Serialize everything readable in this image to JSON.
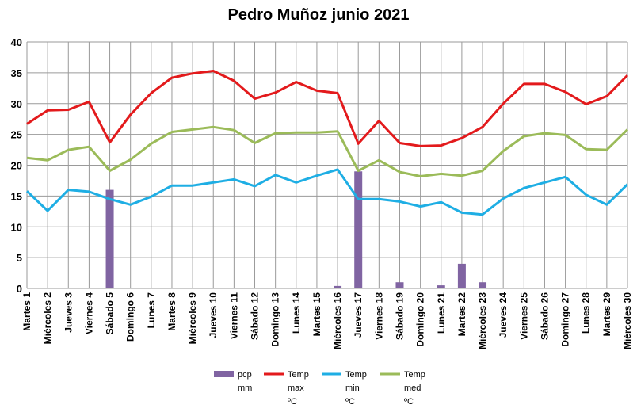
{
  "chart_data": {
    "type": "bar+line",
    "title": "Pedro Muñoz junio 2021",
    "xlabel": "",
    "ylabel": "",
    "ylim": [
      0,
      40
    ],
    "yticks": [
      0,
      5,
      10,
      15,
      20,
      25,
      30,
      35,
      40
    ],
    "grid": true,
    "legend_position": "bottom",
    "categories": [
      "Martes 1",
      "Miércoles 2",
      "Jueves 3",
      "Viernes 4",
      "Sábado 5",
      "Domingo 6",
      "Lunes 7",
      "Martes 8",
      "Miércoles 9",
      "Jueves 10",
      "Viernes 11",
      "Sábado 12",
      "Domingo 13",
      "Lunes 14",
      "Martes 15",
      "Miércoles 16",
      "Jueves 17",
      "Viernes 18",
      "Sábado 19",
      "Domingo 20",
      "Lunes 21",
      "Martes 22",
      "Miércoles 23",
      "Jueves 24",
      "Viernes 25",
      "Sábado 26",
      "Domingo 27",
      "Lunes 28",
      "Martes 29",
      "Miércoles 30"
    ],
    "series": [
      {
        "name": [
          "pcp",
          "mm"
        ],
        "kind": "bar",
        "color": "#8064A2",
        "values": [
          0,
          0,
          0,
          0,
          16,
          0,
          0,
          0,
          0,
          0,
          0,
          0,
          0,
          0,
          0,
          0.4,
          19,
          0,
          1,
          0,
          0.5,
          4,
          1,
          0,
          0,
          0,
          0,
          0,
          0,
          0
        ]
      },
      {
        "name": [
          "Temp",
          "max",
          "ºC"
        ],
        "kind": "line",
        "color": "#E31A1C",
        "values": [
          26.7,
          28.9,
          29.0,
          30.3,
          23.7,
          28.2,
          31.7,
          34.2,
          34.9,
          35.3,
          33.7,
          30.8,
          31.8,
          33.5,
          32.1,
          31.7,
          23.5,
          27.2,
          23.6,
          23.1,
          23.2,
          24.4,
          26.2,
          30.0,
          33.2,
          33.2,
          31.9,
          29.9,
          31.2,
          34.6
        ]
      },
      {
        "name": [
          "Temp",
          "min",
          "ºC"
        ],
        "kind": "line",
        "color": "#1EAEE4",
        "values": [
          15.8,
          12.6,
          16.0,
          15.7,
          14.5,
          13.6,
          14.9,
          16.7,
          16.7,
          17.2,
          17.7,
          16.6,
          18.4,
          17.2,
          18.3,
          19.3,
          14.5,
          14.5,
          14.1,
          13.3,
          14.0,
          12.3,
          12.0,
          14.6,
          16.3,
          17.2,
          18.1,
          15.2,
          13.6,
          16.9
        ]
      },
      {
        "name": [
          "Temp",
          "med",
          "ºC"
        ],
        "kind": "line",
        "color": "#9BBB59",
        "values": [
          21.2,
          20.8,
          22.5,
          23.0,
          19.1,
          20.9,
          23.5,
          25.4,
          25.8,
          26.2,
          25.7,
          23.6,
          25.2,
          25.3,
          25.3,
          25.5,
          19.1,
          20.8,
          18.9,
          18.2,
          18.6,
          18.3,
          19.1,
          22.3,
          24.7,
          25.2,
          24.9,
          22.6,
          22.5,
          25.8
        ]
      }
    ]
  }
}
